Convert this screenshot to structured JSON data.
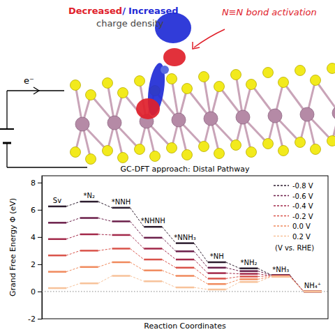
{
  "illustration": {
    "charge_label": {
      "decreased": "Decreased",
      "separator": "/",
      "increased": "Increased",
      "suffix": "charge density"
    },
    "bond_label": "N≡N bond activation",
    "electron_label": "e⁻"
  },
  "chart_data": {
    "type": "line",
    "title": "GC-DFT approach: Distal Pathway",
    "x_label": "Reaction Coordinates",
    "y_label": "Grand Free Energy Φ (eV)",
    "categories": [
      "Sv",
      "*N₂",
      "*NNH",
      "*NHNH",
      "*NNH₃",
      "*NH",
      "*NH₂",
      "*NH₃",
      "NH₄⁺"
    ],
    "series": [
      {
        "name": "-0.8 V",
        "color": "#2d1e2f",
        "values": [
          6.25,
          6.6,
          6.15,
          4.75,
          3.55,
          2.15,
          1.7,
          1.2,
          0
        ]
      },
      {
        "name": "-0.6 V",
        "color": "#6b1f4a",
        "values": [
          5.05,
          5.4,
          5.15,
          3.95,
          2.95,
          1.75,
          1.5,
          1.2,
          0
        ]
      },
      {
        "name": "-0.4 V",
        "color": "#a3294a",
        "values": [
          3.85,
          4.2,
          4.15,
          3.15,
          2.35,
          1.35,
          1.3,
          1.15,
          0
        ]
      },
      {
        "name": "-0.2 V",
        "color": "#d9534a",
        "values": [
          2.65,
          3.0,
          3.15,
          2.35,
          1.75,
          0.95,
          1.1,
          1.15,
          0
        ]
      },
      {
        "name": "0.0 V",
        "color": "#f08a5d",
        "values": [
          1.45,
          1.8,
          2.15,
          1.55,
          1.15,
          0.55,
          0.9,
          1.1,
          0
        ]
      },
      {
        "name": "0.2 V",
        "color": "#f7c29a",
        "values": [
          0.25,
          0.6,
          1.15,
          0.75,
          0.3,
          0.15,
          0.7,
          1.1,
          0
        ]
      }
    ],
    "legend_title": "(V vs. RHE)",
    "legend": "upper right",
    "ylim": [
      -2,
      8.5
    ],
    "yticks": [
      -2,
      0,
      2,
      4,
      6,
      8
    ],
    "tick_labels": "y",
    "line_style": "dashed",
    "reference_y": 0
  }
}
